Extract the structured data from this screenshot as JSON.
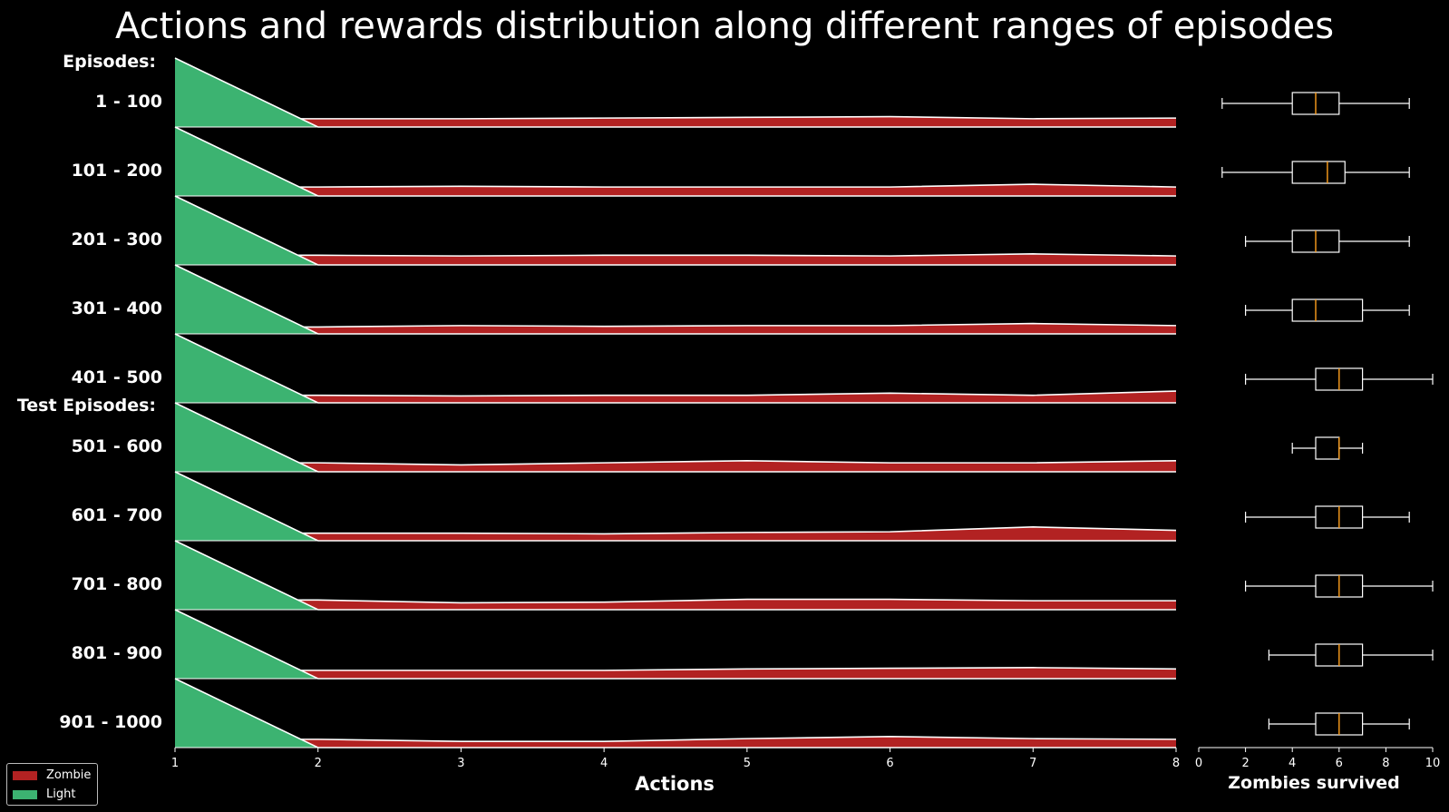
{
  "chart_data": {
    "type": "area",
    "title": "Actions and rewards distribution along different ranges of episodes",
    "section_labels": {
      "train": "Episodes:",
      "test": "Test Episodes:"
    },
    "xlabel": "Actions",
    "x": [
      1,
      2,
      3,
      4,
      5,
      6,
      7,
      8
    ],
    "xlim": [
      1,
      8
    ],
    "legend_position": "bottom-left",
    "legend": [
      {
        "name": "Zombie",
        "color": "#b22222"
      },
      {
        "name": "Light",
        "color": "#3cb371"
      }
    ],
    "rows": [
      {
        "label": "1 - 100",
        "light": [
          1.0,
          0,
          0,
          0,
          0,
          0,
          0,
          0
        ],
        "zombie": [
          0.12,
          0.12,
          0.12,
          0.13,
          0.14,
          0.15,
          0.12,
          0.13
        ],
        "box": {
          "whisker_low": 1,
          "q1": 4,
          "median": 5,
          "q3": 6,
          "whisker_high": 9
        }
      },
      {
        "label": "101 - 200",
        "light": [
          1.0,
          0,
          0,
          0,
          0,
          0,
          0,
          0
        ],
        "zombie": [
          0.13,
          0.13,
          0.14,
          0.13,
          0.13,
          0.13,
          0.17,
          0.13
        ],
        "box": {
          "whisker_low": 1,
          "q1": 4,
          "median": 5.5,
          "q3": 6.25,
          "whisker_high": 9
        }
      },
      {
        "label": "201 - 300",
        "light": [
          1.0,
          0,
          0,
          0,
          0,
          0,
          0,
          0
        ],
        "zombie": [
          0.14,
          0.14,
          0.13,
          0.14,
          0.14,
          0.13,
          0.16,
          0.13
        ],
        "box": {
          "whisker_low": 2,
          "q1": 4,
          "median": 5,
          "q3": 6,
          "whisker_high": 9
        }
      },
      {
        "label": "301 - 400",
        "light": [
          1.0,
          0,
          0,
          0,
          0,
          0,
          0,
          0
        ],
        "zombie": [
          0.1,
          0.1,
          0.12,
          0.11,
          0.12,
          0.12,
          0.15,
          0.12
        ],
        "box": {
          "whisker_low": 2,
          "q1": 4,
          "median": 5,
          "q3": 7,
          "whisker_high": 9
        }
      },
      {
        "label": "401 - 500",
        "light": [
          1.0,
          0,
          0,
          0,
          0,
          0,
          0,
          0
        ],
        "zombie": [
          0.11,
          0.11,
          0.1,
          0.11,
          0.11,
          0.14,
          0.11,
          0.17
        ],
        "box": {
          "whisker_low": 2,
          "q1": 5,
          "median": 6,
          "q3": 7,
          "whisker_high": 10
        }
      },
      {
        "label": "501 - 600",
        "light": [
          1.0,
          0,
          0,
          0,
          0,
          0,
          0,
          0
        ],
        "zombie": [
          0.13,
          0.13,
          0.1,
          0.13,
          0.16,
          0.13,
          0.13,
          0.16
        ],
        "box": {
          "whisker_low": 4,
          "q1": 5,
          "median": 6,
          "q3": 6,
          "whisker_high": 7
        }
      },
      {
        "label": "601 - 700",
        "light": [
          1.0,
          0,
          0,
          0,
          0,
          0,
          0,
          0
        ],
        "zombie": [
          0.11,
          0.11,
          0.11,
          0.1,
          0.12,
          0.13,
          0.2,
          0.15
        ],
        "box": {
          "whisker_low": 2,
          "q1": 5,
          "median": 6,
          "q3": 7,
          "whisker_high": 9
        }
      },
      {
        "label": "701 - 800",
        "light": [
          1.0,
          0,
          0,
          0,
          0,
          0,
          0,
          0
        ],
        "zombie": [
          0.14,
          0.14,
          0.1,
          0.11,
          0.15,
          0.15,
          0.13,
          0.13
        ],
        "box": {
          "whisker_low": 2,
          "q1": 5,
          "median": 6,
          "q3": 7,
          "whisker_high": 10
        }
      },
      {
        "label": "801 - 900",
        "light": [
          1.0,
          0,
          0,
          0,
          0,
          0,
          0,
          0
        ],
        "zombie": [
          0.12,
          0.12,
          0.12,
          0.12,
          0.14,
          0.15,
          0.16,
          0.14
        ],
        "box": {
          "whisker_low": 3,
          "q1": 5,
          "median": 6,
          "q3": 7,
          "whisker_high": 10
        }
      },
      {
        "label": "901 - 1000",
        "light": [
          1.0,
          0,
          0,
          0,
          0,
          0,
          0,
          0
        ],
        "zombie": [
          0.12,
          0.12,
          0.09,
          0.09,
          0.13,
          0.16,
          0.13,
          0.12
        ],
        "box": {
          "whisker_low": 3,
          "q1": 5,
          "median": 6,
          "q3": 7,
          "whisker_high": 9
        }
      }
    ],
    "boxplot": {
      "xlabel": "Zombies survived",
      "xlim": [
        0,
        10
      ],
      "ticks": [
        0,
        2,
        4,
        6,
        8,
        10
      ],
      "box_color": "#ffffff",
      "median_color": "#ff9f1c"
    }
  }
}
